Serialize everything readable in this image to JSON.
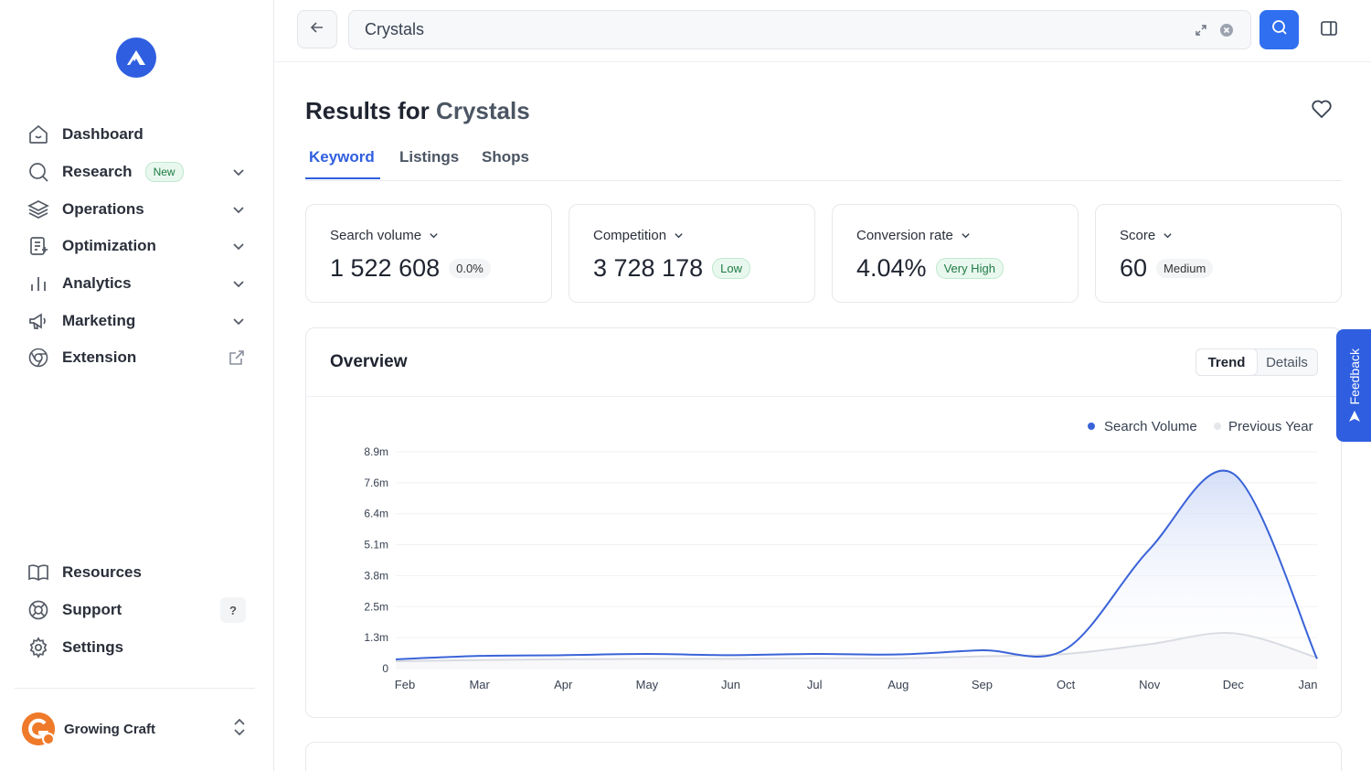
{
  "sidebar": {
    "logo_icon": "brand-logo-icon",
    "items": [
      {
        "label": "Dashboard",
        "icon": "home-icon",
        "right": ""
      },
      {
        "label": "Research",
        "icon": "search-icon",
        "badge": "New",
        "right": "chevron"
      },
      {
        "label": "Operations",
        "icon": "layers-icon",
        "right": "chevron"
      },
      {
        "label": "Optimization",
        "icon": "document-edit-icon",
        "right": "chevron"
      },
      {
        "label": "Analytics",
        "icon": "bar-chart-icon",
        "right": "chevron"
      },
      {
        "label": "Marketing",
        "icon": "megaphone-icon",
        "right": "chevron"
      },
      {
        "label": "Extension",
        "icon": "chrome-icon",
        "right": "external"
      }
    ],
    "bottom_items": [
      {
        "label": "Resources",
        "icon": "book-icon"
      },
      {
        "label": "Support",
        "icon": "lifebuoy-icon",
        "badge": "?"
      },
      {
        "label": "Settings",
        "icon": "gear-icon"
      }
    ],
    "shop": {
      "name": "Growing Craft"
    }
  },
  "search": {
    "value": "Crystals"
  },
  "header": {
    "title_prefix": "Results for",
    "title_query": "Crystals"
  },
  "tabs": [
    "Keyword",
    "Listings",
    "Shops"
  ],
  "active_tab": "Keyword",
  "metrics": [
    {
      "label": "Search volume",
      "value": "1 522 608",
      "chip": "0.0%",
      "chip_style": "neutral"
    },
    {
      "label": "Competition",
      "value": "3 728 178",
      "chip": "Low",
      "chip_style": "green"
    },
    {
      "label": "Conversion rate",
      "value": "4.04%",
      "chip": "Very High",
      "chip_style": "green"
    },
    {
      "label": "Score",
      "value": "60",
      "chip": "Medium",
      "chip_style": "neutral"
    }
  ],
  "overview": {
    "title": "Overview",
    "toggle": [
      "Trend",
      "Details"
    ],
    "toggle_active": "Trend"
  },
  "feedback": {
    "label": "Feedback"
  },
  "colors": {
    "accent": "#2f5fe0",
    "series_primary": "#3a63d8",
    "series_secondary": "#d6d9df"
  },
  "chart_data": {
    "type": "area",
    "categories": [
      "Feb",
      "Mar",
      "Apr",
      "May",
      "Jun",
      "Jul",
      "Aug",
      "Sep",
      "Oct",
      "Nov",
      "Dec",
      "Jan"
    ],
    "y_ticks": [
      "0",
      "1.3m",
      "2.5m",
      "3.8m",
      "5.1m",
      "6.4m",
      "7.6m",
      "8.9m"
    ],
    "ylim": [
      0,
      8.9
    ],
    "y_unit": "m",
    "legend_position": "top-right",
    "series": [
      {
        "name": "Search Volume",
        "color": "#3a63d8",
        "values": [
          0.38,
          0.52,
          0.55,
          0.6,
          0.55,
          0.6,
          0.58,
          0.75,
          0.8,
          4.9,
          8.0,
          0.4
        ]
      },
      {
        "name": "Previous Year",
        "color": "#d6d9df",
        "values": [
          0.3,
          0.35,
          0.38,
          0.4,
          0.4,
          0.42,
          0.42,
          0.5,
          0.6,
          1.0,
          1.45,
          0.45
        ]
      }
    ]
  }
}
